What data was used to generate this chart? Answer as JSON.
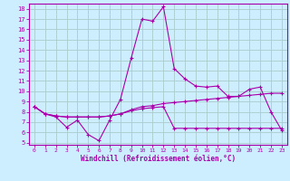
{
  "xlabel": "Windchill (Refroidissement éolien,°C)",
  "background_color": "#cceeff",
  "grid_color": "#aacccc",
  "line_color": "#aa00aa",
  "x": [
    0,
    1,
    2,
    3,
    4,
    5,
    6,
    7,
    8,
    9,
    10,
    11,
    12,
    13,
    14,
    15,
    16,
    17,
    18,
    19,
    20,
    21,
    22,
    23
  ],
  "line1": [
    8.5,
    7.8,
    7.5,
    6.5,
    7.2,
    5.8,
    5.2,
    7.2,
    9.2,
    13.2,
    17.0,
    16.8,
    18.2,
    12.2,
    11.2,
    10.5,
    10.4,
    10.5,
    9.5,
    9.5,
    10.2,
    10.4,
    8.0,
    6.2
  ],
  "line2": [
    8.5,
    7.8,
    7.6,
    7.5,
    7.5,
    7.5,
    7.5,
    7.6,
    7.8,
    8.2,
    8.5,
    8.6,
    8.8,
    8.9,
    9.0,
    9.1,
    9.2,
    9.3,
    9.4,
    9.5,
    9.6,
    9.7,
    9.8,
    9.8
  ],
  "line3": [
    8.5,
    7.8,
    7.6,
    7.5,
    7.5,
    7.5,
    7.5,
    7.6,
    7.8,
    8.1,
    8.3,
    8.4,
    8.5,
    6.4,
    6.4,
    6.4,
    6.4,
    6.4,
    6.4,
    6.4,
    6.4,
    6.4,
    6.4,
    6.4
  ],
  "ylim": [
    5,
    18
  ],
  "xlim": [
    0,
    23
  ],
  "yticks": [
    5,
    6,
    7,
    8,
    9,
    10,
    11,
    12,
    13,
    14,
    15,
    16,
    17,
    18
  ],
  "xticks": [
    0,
    1,
    2,
    3,
    4,
    5,
    6,
    7,
    8,
    9,
    10,
    11,
    12,
    13,
    14,
    15,
    16,
    17,
    18,
    19,
    20,
    21,
    22,
    23
  ]
}
